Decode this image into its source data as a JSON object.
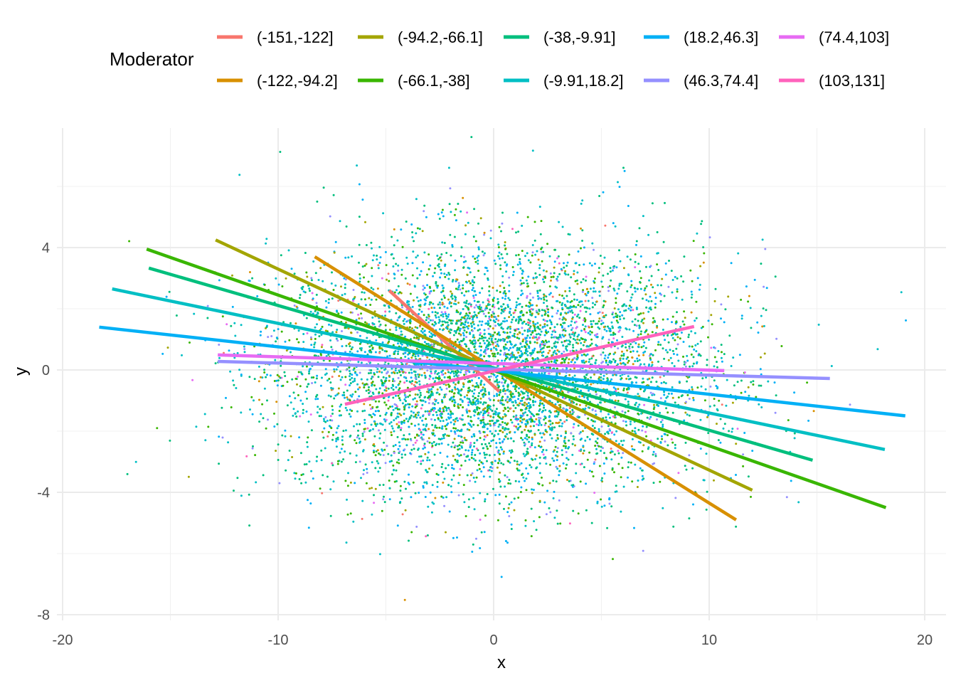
{
  "chart_data": {
    "type": "scatter",
    "title": "",
    "xlabel": "x",
    "ylabel": "y",
    "xlim": [
      -20.2,
      21
    ],
    "ylim": [
      -8.1,
      7.8
    ],
    "xticks": [
      -20,
      -10,
      0,
      10,
      20
    ],
    "xtick_labels": [
      "-20",
      "-10",
      "0",
      "10",
      "20"
    ],
    "yticks": [
      4,
      0,
      -4,
      -8
    ],
    "ytick_labels": [
      "4",
      "0",
      "-4",
      "-8"
    ],
    "grid": true,
    "legend": {
      "title": "Moderator",
      "placement": "top",
      "entries": [
        {
          "label": "(-151,-122]",
          "color": "#F8766D"
        },
        {
          "label": "(-122,-94.2]",
          "color": "#D89000"
        },
        {
          "label": "(-94.2,-66.1]",
          "color": "#A3A500"
        },
        {
          "label": "(-66.1,-38]",
          "color": "#39B600"
        },
        {
          "label": "(-38,-9.91]",
          "color": "#00BF7D"
        },
        {
          "label": "(-9.91,18.2]",
          "color": "#00BFC4"
        },
        {
          "label": "(18.2,46.3]",
          "color": "#00B0F6"
        },
        {
          "label": "(46.3,74.4]",
          "color": "#9590FF"
        },
        {
          "label": "(74.4,103]",
          "color": "#E76BF3"
        },
        {
          "label": "(103,131]",
          "color": "#FF62BC"
        }
      ]
    },
    "lines": [
      {
        "group": "(-151,-122]",
        "x": [
          -4.85,
          0.26
        ],
        "y": [
          2.6,
          -0.7
        ]
      },
      {
        "group": "(-122,-94.2]",
        "x": [
          -8.3,
          11.25
        ],
        "y": [
          3.7,
          -4.9
        ]
      },
      {
        "group": "(-94.2,-66.1]",
        "x": [
          -12.9,
          12.0
        ],
        "y": [
          4.25,
          -3.93
        ]
      },
      {
        "group": "(-66.1,-38]",
        "x": [
          -16.1,
          18.2
        ],
        "y": [
          3.95,
          -4.5
        ]
      },
      {
        "group": "(-38,-9.91]",
        "x": [
          -16.0,
          14.8
        ],
        "y": [
          3.33,
          -2.95
        ]
      },
      {
        "group": "(-9.91,18.2]",
        "x": [
          -17.7,
          18.15
        ],
        "y": [
          2.65,
          -2.6
        ]
      },
      {
        "group": "(18.2,46.3]",
        "x": [
          -18.3,
          19.1
        ],
        "y": [
          1.4,
          -1.5
        ]
      },
      {
        "group": "(46.3,74.4]",
        "x": [
          -12.8,
          15.6
        ],
        "y": [
          0.28,
          -0.28
        ]
      },
      {
        "group": "(74.4,103]",
        "x": [
          -12.8,
          10.7
        ],
        "y": [
          0.49,
          -0.02
        ]
      },
      {
        "group": "(103,131]",
        "x": [
          -6.9,
          9.3
        ],
        "y": [
          -1.12,
          1.42
        ]
      }
    ],
    "points": {
      "n": 6000,
      "x_mean": 0,
      "x_sd": 5,
      "y_mean": 0,
      "y_sd": 2,
      "group_weights": [
        0.01,
        0.03,
        0.06,
        0.14,
        0.24,
        0.26,
        0.17,
        0.06,
        0.02,
        0.01
      ]
    }
  }
}
